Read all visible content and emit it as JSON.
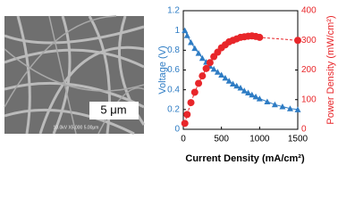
{
  "micrograph": {
    "scale_label": "5 μm",
    "caption": "10.0kV X5,000 5.00μm"
  },
  "chart_data": {
    "type": "line",
    "xlabel": "Current Density (mA/cm²)",
    "ylabel": "Voltage (V)",
    "y2label": "Power Density (mW/cm²)",
    "xlim": [
      0,
      1500
    ],
    "xticks": [
      0,
      500,
      1000,
      1500
    ],
    "ylim": [
      0,
      1.2
    ],
    "yticks": [
      0,
      0.2,
      0.4,
      0.6,
      0.8,
      1,
      1.2
    ],
    "y2lim": [
      0,
      400
    ],
    "y2ticks": [
      0,
      100,
      200,
      300,
      400
    ],
    "series": [
      {
        "name": "Voltage",
        "color": "#2e7cc4",
        "marker": "triangle",
        "axis": "y",
        "x": [
          20,
          50,
          100,
          150,
          200,
          250,
          300,
          350,
          400,
          450,
          500,
          550,
          600,
          650,
          700,
          750,
          800,
          850,
          900,
          950,
          1000,
          1100,
          1200,
          1300,
          1400,
          1500
        ],
        "values": [
          1.0,
          0.95,
          0.88,
          0.82,
          0.77,
          0.72,
          0.68,
          0.64,
          0.61,
          0.58,
          0.55,
          0.52,
          0.49,
          0.46,
          0.44,
          0.42,
          0.39,
          0.37,
          0.35,
          0.33,
          0.31,
          0.28,
          0.25,
          0.23,
          0.21,
          0.2
        ]
      },
      {
        "name": "Power Density",
        "color": "#e8262a",
        "marker": "circle",
        "axis": "y2",
        "x": [
          20,
          50,
          100,
          150,
          200,
          250,
          300,
          350,
          400,
          450,
          500,
          550,
          600,
          650,
          700,
          750,
          800,
          850,
          900,
          950,
          1000,
          1500
        ],
        "values": [
          20,
          50,
          90,
          125,
          155,
          180,
          205,
          225,
          245,
          260,
          275,
          285,
          295,
          300,
          305,
          310,
          312,
          314,
          315,
          313,
          310,
          300
        ]
      }
    ]
  }
}
